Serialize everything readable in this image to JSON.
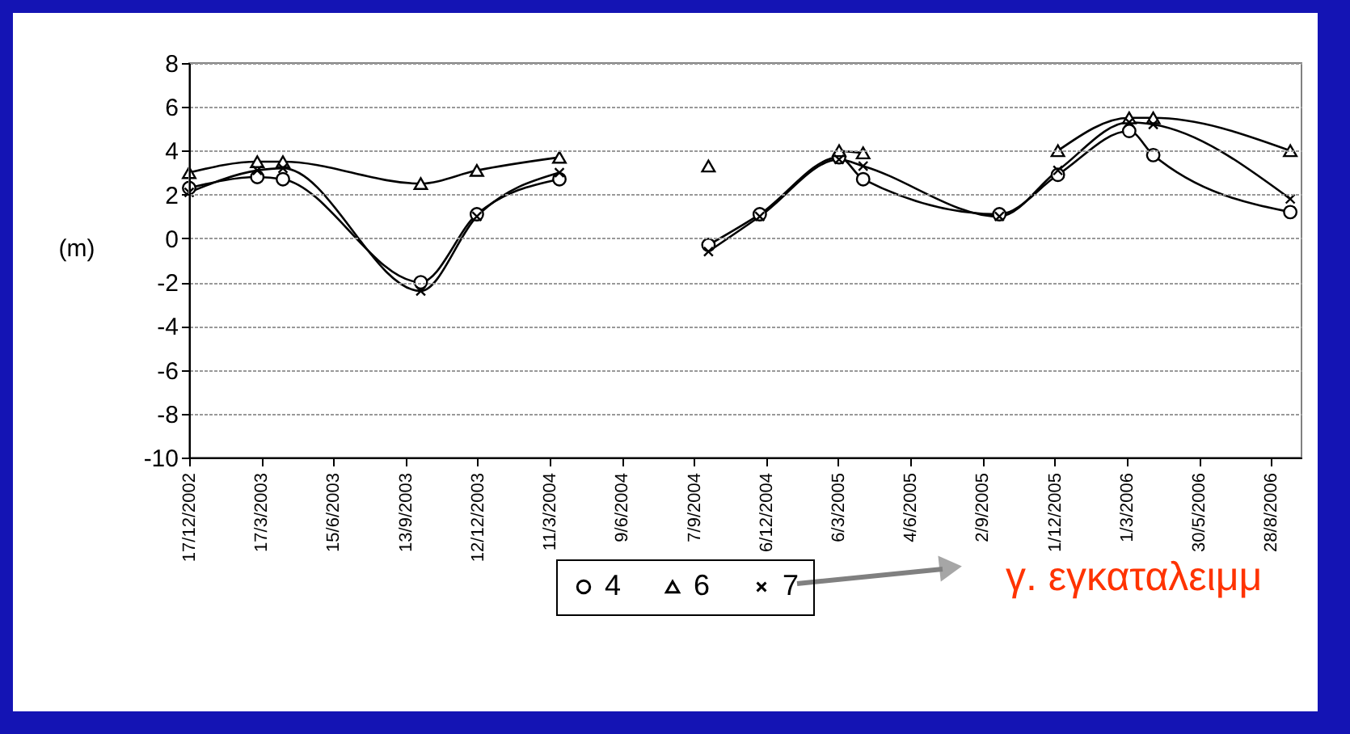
{
  "chart_data": {
    "type": "line",
    "ylabel": "(m)",
    "x": [
      "2002-12-17",
      "2003-03-12",
      "2003-04-13",
      "2003-10-02",
      "2003-12-11",
      "2004-03-23",
      "2004-06-15",
      "2004-09-25",
      "2004-11-28",
      "2005-03-07",
      "2005-04-06",
      "2005-09-23",
      "2005-12-05",
      "2006-03-04",
      "2006-04-03",
      "2006-09-21"
    ],
    "series": [
      {
        "name": "4",
        "color": "#000000",
        "marker": "circle",
        "values": [
          2.3,
          2.8,
          2.7,
          -2.0,
          1.1,
          2.7,
          null,
          -0.3,
          1.1,
          3.7,
          2.7,
          1.1,
          2.9,
          4.9,
          3.8,
          1.2
        ]
      },
      {
        "name": "6",
        "color": "#000000",
        "marker": "triangle",
        "values": [
          3.0,
          3.5,
          3.5,
          2.5,
          3.1,
          3.7,
          null,
          3.3,
          null,
          4.0,
          3.9,
          null,
          4.0,
          5.5,
          5.5,
          4.0
        ]
      },
      {
        "name": "7",
        "color": "#000000",
        "marker": "cross",
        "values": [
          2.1,
          3.1,
          3.2,
          -2.4,
          1.0,
          3.0,
          null,
          -0.6,
          1.0,
          3.6,
          3.3,
          1.0,
          3.1,
          5.3,
          5.2,
          1.8
        ]
      }
    ],
    "xlim": [
      "2002-12-17",
      "2006-10-05"
    ],
    "xticks": [
      {
        "value": "2002-12-17",
        "label": "17/12/2002"
      },
      {
        "value": "2003-03-17",
        "label": "17/3/2003"
      },
      {
        "value": "2003-06-15",
        "label": "15/6/2003"
      },
      {
        "value": "2003-09-13",
        "label": "13/9/2003"
      },
      {
        "value": "2003-12-12",
        "label": "12/12/2003"
      },
      {
        "value": "2004-03-11",
        "label": "11/3/2004"
      },
      {
        "value": "2004-06-09",
        "label": "9/6/2004"
      },
      {
        "value": "2004-09-07",
        "label": "7/9/2004"
      },
      {
        "value": "2004-12-06",
        "label": "6/12/2004"
      },
      {
        "value": "2005-03-06",
        "label": "6/3/2005"
      },
      {
        "value": "2005-06-04",
        "label": "4/6/2005"
      },
      {
        "value": "2005-09-02",
        "label": "2/9/2005"
      },
      {
        "value": "2005-12-01",
        "label": "1/12/2005"
      },
      {
        "value": "2006-03-01",
        "label": "1/3/2006"
      },
      {
        "value": "2006-05-30",
        "label": "30/5/2006"
      },
      {
        "value": "2006-08-28",
        "label": "28/8/2006"
      }
    ],
    "ylim": [
      -10,
      8
    ],
    "yticks": [
      -10,
      -8,
      -6,
      -4,
      -2,
      0,
      2,
      4,
      6,
      8
    ],
    "grid": "y",
    "legend": "bottom",
    "line_style": "solid",
    "annotations": [
      "γ. εγκαταλειμμ"
    ]
  }
}
